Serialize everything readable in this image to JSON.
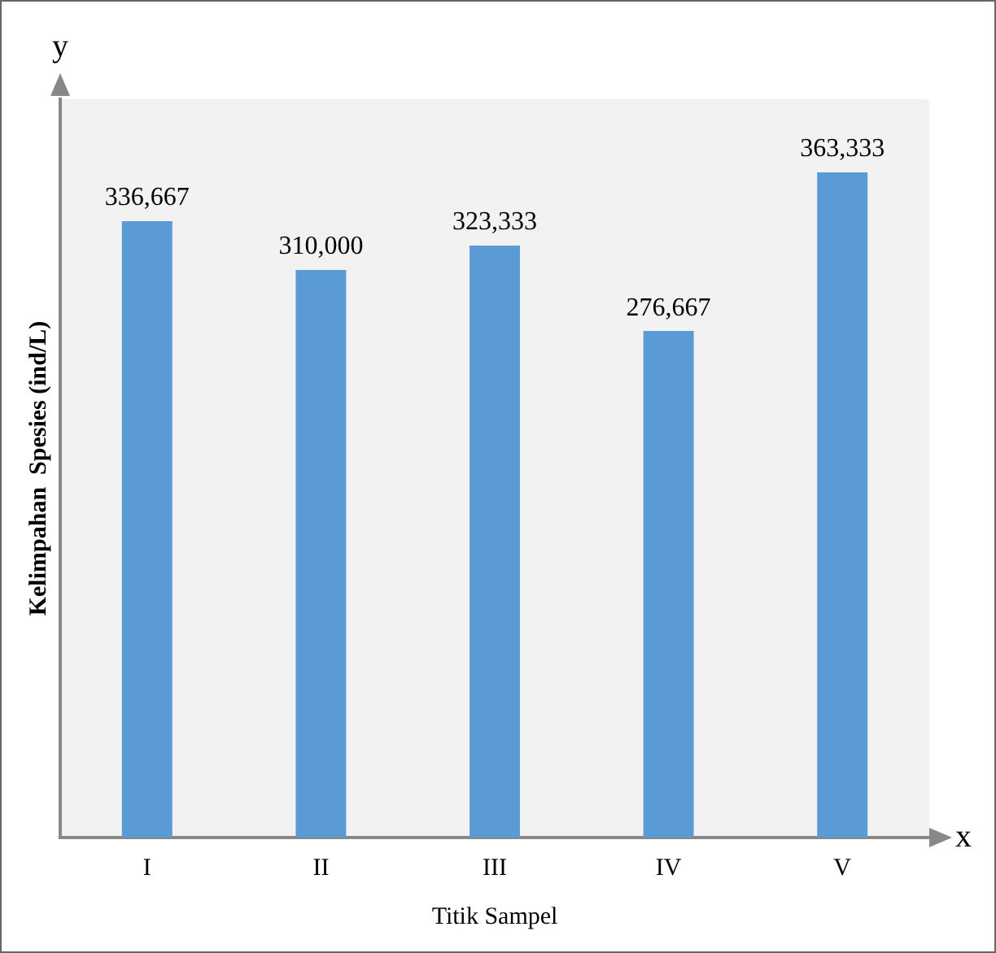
{
  "chart_data": {
    "type": "bar",
    "xlabel": "Titik Sampel",
    "ylabel": "Kelimpahan  Spesies (ind/L)",
    "categories": [
      "I",
      "II",
      "III",
      "IV",
      "V"
    ],
    "values": [
      336667,
      310000,
      323333,
      276667,
      363333
    ],
    "value_labels": [
      "336,667",
      "310,000",
      "323,333",
      "276,667",
      "363,333"
    ],
    "color": "#5b9bd5",
    "annotations": [
      "y",
      "x"
    ],
    "grid": false,
    "legend": false
  }
}
